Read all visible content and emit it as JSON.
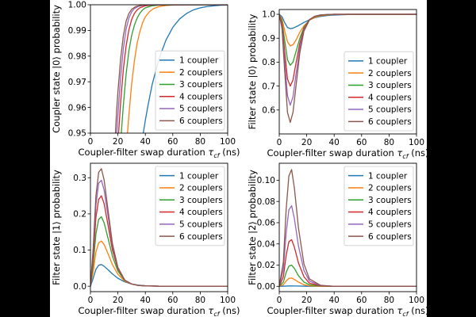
{
  "colors": {
    "series": [
      "#1f77b4",
      "#ff7f0e",
      "#2ca02c",
      "#d62728",
      "#9467bd",
      "#8c564b"
    ]
  },
  "chart_data": [
    {
      "type": "line",
      "panel": "top-left",
      "xlabel": "Coupler-filter swap duration τ_cf (ns)",
      "xlabel_main": "Coupler-filter swap duration ",
      "xlabel_sym": "τ",
      "xlabel_sub": "cf",
      "xlabel_unit": " (ns)",
      "ylabel": "Coupler state |0⟩ probability",
      "xlim": [
        0,
        100
      ],
      "ylim": [
        0.95,
        1.0
      ],
      "xticks": [
        0,
        20,
        40,
        60,
        80,
        100
      ],
      "yticks": [
        0.95,
        0.96,
        0.97,
        0.98,
        0.99,
        1.0
      ],
      "ytick_labels": [
        "0.95",
        "0.96",
        "0.97",
        "0.98",
        "0.99",
        "1.00"
      ],
      "legend_position": "lower-right",
      "series": [
        {
          "name": "1 coupler",
          "x": [
            38.5,
            40,
            42,
            45,
            50,
            55,
            60,
            65,
            70,
            75,
            80,
            85,
            90,
            95,
            100
          ],
          "y": [
            0.95,
            0.955,
            0.961,
            0.969,
            0.979,
            0.9862,
            0.9912,
            0.9945,
            0.9966,
            0.998,
            0.9988,
            0.9993,
            0.9996,
            0.9998,
            0.9999
          ]
        },
        {
          "name": "2 couplers",
          "x": [
            27,
            28,
            30,
            32,
            34,
            36,
            38,
            40,
            43,
            46,
            50,
            55,
            60,
            70,
            80,
            100
          ],
          "y": [
            0.95,
            0.957,
            0.969,
            0.978,
            0.985,
            0.9895,
            0.993,
            0.9953,
            0.9973,
            0.9985,
            0.9993,
            0.9997,
            0.9999,
            1.0,
            1.0,
            1.0
          ]
        },
        {
          "name": "3 couplers",
          "x": [
            22.5,
            24,
            26,
            28,
            30,
            32,
            34,
            36,
            38,
            40,
            45,
            50,
            60,
            100
          ],
          "y": [
            0.95,
            0.961,
            0.973,
            0.982,
            0.988,
            0.992,
            0.9948,
            0.9967,
            0.998,
            0.9988,
            0.9996,
            0.9999,
            1.0,
            1.0
          ]
        },
        {
          "name": "4 couplers",
          "x": [
            20.5,
            22,
            24,
            26,
            28,
            30,
            32,
            34,
            36,
            40,
            45,
            55,
            100
          ],
          "y": [
            0.95,
            0.962,
            0.975,
            0.984,
            0.9902,
            0.9942,
            0.9966,
            0.998,
            0.9988,
            0.9996,
            0.9999,
            1.0,
            1.0
          ]
        },
        {
          "name": "5 couplers",
          "x": [
            19.2,
            20,
            22,
            24,
            26,
            28,
            30,
            32,
            35,
            40,
            50,
            100
          ],
          "y": [
            0.95,
            0.957,
            0.972,
            0.983,
            0.9905,
            0.9948,
            0.9972,
            0.9985,
            0.9994,
            0.9999,
            1.0,
            1.0
          ]
        },
        {
          "name": "6 couplers",
          "x": [
            18.2,
            19,
            20,
            22,
            24,
            26,
            28,
            30,
            33,
            38,
            45,
            100
          ],
          "y": [
            0.95,
            0.958,
            0.966,
            0.979,
            0.988,
            0.9936,
            0.9966,
            0.9982,
            0.9993,
            0.9999,
            1.0,
            1.0
          ]
        }
      ]
    },
    {
      "type": "line",
      "panel": "top-right",
      "xlabel": "Coupler-filter swap duration τ_cf (ns)",
      "xlabel_main": "Coupler-filter swap duration ",
      "xlabel_sym": "τ",
      "xlabel_sub": "cf",
      "xlabel_unit": " (ns)",
      "ylabel": "Filter state |0⟩ probability",
      "xlim": [
        0,
        100
      ],
      "ylim": [
        0.5,
        1.02
      ],
      "xticks": [
        0,
        20,
        40,
        60,
        80,
        100
      ],
      "yticks": [
        0.6,
        0.7,
        0.8,
        0.9,
        1.0
      ],
      "ytick_labels": [
        "0.6",
        "0.7",
        "0.8",
        "0.9",
        "1.0"
      ],
      "legend_position": "lower-right",
      "series": [
        {
          "name": "1 coupler",
          "x": [
            0,
            2,
            4,
            6,
            8,
            10,
            14,
            18,
            22,
            26,
            30,
            35,
            40,
            50,
            60,
            80,
            100
          ],
          "y": [
            1.0,
            0.99,
            0.965,
            0.945,
            0.94,
            0.942,
            0.953,
            0.966,
            0.977,
            0.986,
            0.991,
            0.995,
            0.997,
            0.999,
            1.0,
            1.0,
            1.0
          ]
        },
        {
          "name": "2 couplers",
          "x": [
            0,
            2,
            4,
            6,
            8,
            10,
            12,
            15,
            18,
            22,
            26,
            30,
            35,
            40,
            50,
            60,
            100
          ],
          "y": [
            1.0,
            0.98,
            0.93,
            0.885,
            0.868,
            0.873,
            0.89,
            0.925,
            0.952,
            0.975,
            0.988,
            0.994,
            0.997,
            0.999,
            1.0,
            1.0,
            1.0
          ]
        },
        {
          "name": "3 couplers",
          "x": [
            0,
            2,
            4,
            6,
            8,
            10,
            12,
            15,
            18,
            22,
            26,
            30,
            35,
            40,
            50,
            100
          ],
          "y": [
            1.0,
            0.97,
            0.89,
            0.81,
            0.787,
            0.8,
            0.84,
            0.9,
            0.945,
            0.978,
            0.991,
            0.996,
            0.998,
            0.999,
            1.0,
            1.0
          ]
        },
        {
          "name": "4 couplers",
          "x": [
            0,
            2,
            4,
            6,
            8,
            10,
            12,
            15,
            18,
            22,
            26,
            30,
            35,
            40,
            50,
            100
          ],
          "y": [
            1.0,
            0.96,
            0.84,
            0.73,
            0.7,
            0.725,
            0.79,
            0.88,
            0.94,
            0.978,
            0.992,
            0.997,
            0.999,
            1.0,
            1.0,
            1.0
          ]
        },
        {
          "name": "5 couplers",
          "x": [
            0,
            2,
            4,
            6,
            8,
            10,
            12,
            15,
            18,
            22,
            26,
            30,
            35,
            40,
            50,
            100
          ],
          "y": [
            1.0,
            0.95,
            0.8,
            0.66,
            0.62,
            0.655,
            0.74,
            0.86,
            0.935,
            0.977,
            0.992,
            0.997,
            0.999,
            1.0,
            1.0,
            1.0
          ]
        },
        {
          "name": "6 couplers",
          "x": [
            0,
            2,
            4,
            6,
            8,
            10,
            12,
            15,
            18,
            22,
            26,
            30,
            35,
            40,
            50,
            100
          ],
          "y": [
            1.0,
            0.94,
            0.76,
            0.59,
            0.548,
            0.59,
            0.69,
            0.84,
            0.93,
            0.976,
            0.992,
            0.997,
            0.999,
            1.0,
            1.0,
            1.0
          ]
        }
      ]
    },
    {
      "type": "line",
      "panel": "bottom-left",
      "xlabel": "Coupler-filter swap duration τ_cf (ns)",
      "xlabel_main": "Coupler-filter swap duration ",
      "xlabel_sym": "τ",
      "xlabel_sub": "cf",
      "xlabel_unit": " (ns)",
      "ylabel": "Filter state |1⟩ probability",
      "xlim": [
        0,
        100
      ],
      "ylim": [
        -0.015,
        0.34
      ],
      "xticks": [
        0,
        20,
        40,
        60,
        80,
        100
      ],
      "yticks": [
        0.0,
        0.1,
        0.2,
        0.3
      ],
      "ytick_labels": [
        "0.0",
        "0.1",
        "0.2",
        "0.3"
      ],
      "legend_position": "upper-right",
      "series": [
        {
          "name": "1 coupler",
          "x": [
            0,
            2,
            4,
            6,
            8,
            10,
            13,
            16,
            20,
            25,
            30,
            35,
            40,
            50,
            60,
            80,
            100
          ],
          "y": [
            0,
            0.022,
            0.047,
            0.058,
            0.06,
            0.055,
            0.045,
            0.034,
            0.022,
            0.012,
            0.006,
            0.003,
            0.0015,
            0.0003,
            0,
            0,
            0
          ]
        },
        {
          "name": "2 couplers",
          "x": [
            0,
            2,
            4,
            6,
            8,
            10,
            13,
            16,
            20,
            25,
            30,
            35,
            40,
            50,
            60,
            100
          ],
          "y": [
            0,
            0.04,
            0.095,
            0.12,
            0.125,
            0.115,
            0.088,
            0.06,
            0.033,
            0.014,
            0.006,
            0.0025,
            0.001,
            0,
            0,
            0
          ]
        },
        {
          "name": "3 couplers",
          "x": [
            0,
            2,
            4,
            6,
            8,
            10,
            13,
            16,
            20,
            25,
            30,
            35,
            40,
            50,
            100
          ],
          "y": [
            0,
            0.06,
            0.145,
            0.185,
            0.192,
            0.175,
            0.13,
            0.083,
            0.042,
            0.016,
            0.006,
            0.002,
            0.001,
            0,
            0
          ]
        },
        {
          "name": "4 couplers",
          "x": [
            0,
            2,
            4,
            6,
            8,
            10,
            13,
            16,
            20,
            25,
            30,
            35,
            40,
            50,
            100
          ],
          "y": [
            0,
            0.08,
            0.19,
            0.24,
            0.25,
            0.228,
            0.165,
            0.1,
            0.048,
            0.017,
            0.006,
            0.002,
            0.001,
            0,
            0
          ]
        },
        {
          "name": "5 couplers",
          "x": [
            0,
            2,
            4,
            6,
            8,
            10,
            13,
            16,
            20,
            25,
            30,
            35,
            40,
            50,
            100
          ],
          "y": [
            0,
            0.095,
            0.225,
            0.285,
            0.293,
            0.265,
            0.19,
            0.112,
            0.05,
            0.017,
            0.006,
            0.002,
            0.001,
            0,
            0
          ]
        },
        {
          "name": "6 couplers",
          "x": [
            0,
            2,
            4,
            6,
            8,
            10,
            13,
            16,
            20,
            25,
            30,
            35,
            40,
            50,
            100
          ],
          "y": [
            0,
            0.105,
            0.25,
            0.315,
            0.325,
            0.293,
            0.205,
            0.118,
            0.052,
            0.017,
            0.006,
            0.002,
            0.001,
            0,
            0
          ]
        }
      ]
    },
    {
      "type": "line",
      "panel": "bottom-right",
      "xlabel": "Coupler-filter swap duration τ_cf (ns)",
      "xlabel_main": "Coupler-filter swap duration ",
      "xlabel_sym": "τ",
      "xlabel_sub": "cf",
      "xlabel_unit": " (ns)",
      "ylabel": "Filter state |2⟩ probability",
      "xlim": [
        0,
        100
      ],
      "ylim": [
        -0.005,
        0.116
      ],
      "xticks": [
        0,
        20,
        40,
        60,
        80,
        100
      ],
      "yticks": [
        0.0,
        0.02,
        0.04,
        0.06,
        0.08,
        0.1
      ],
      "ytick_labels": [
        "0.00",
        "0.02",
        "0.04",
        "0.06",
        "0.08",
        "0.10"
      ],
      "legend_position": "upper-right",
      "series": [
        {
          "name": "1 coupler",
          "x": [
            0,
            4,
            8,
            12,
            20,
            40,
            100
          ],
          "y": [
            0,
            0.0002,
            0.0004,
            0.0003,
            0.0001,
            0,
            0
          ]
        },
        {
          "name": "2 couplers",
          "x": [
            0,
            3,
            5,
            7,
            9,
            11,
            14,
            18,
            22,
            30,
            40,
            100
          ],
          "y": [
            0,
            0.0015,
            0.005,
            0.0075,
            0.0078,
            0.0065,
            0.004,
            0.0015,
            0.0005,
            0.0001,
            0,
            0
          ]
        },
        {
          "name": "3 couplers",
          "x": [
            0,
            3,
            5,
            7,
            9,
            11,
            14,
            18,
            22,
            30,
            40,
            100
          ],
          "y": [
            0,
            0.004,
            0.013,
            0.019,
            0.02,
            0.017,
            0.01,
            0.004,
            0.0015,
            0.0003,
            0,
            0
          ]
        },
        {
          "name": "4 couplers",
          "x": [
            0,
            3,
            5,
            7,
            9,
            11,
            14,
            18,
            22,
            30,
            40,
            100
          ],
          "y": [
            0,
            0.009,
            0.029,
            0.042,
            0.044,
            0.037,
            0.022,
            0.009,
            0.003,
            0.0005,
            0,
            0
          ]
        },
        {
          "name": "5 couplers",
          "x": [
            0,
            3,
            5,
            7,
            9,
            11,
            14,
            18,
            22,
            30,
            40,
            100
          ],
          "y": [
            0,
            0.016,
            0.05,
            0.072,
            0.076,
            0.064,
            0.038,
            0.015,
            0.005,
            0.0008,
            0,
            0
          ]
        },
        {
          "name": "6 couplers",
          "x": [
            0,
            3,
            5,
            7,
            9,
            11,
            14,
            18,
            22,
            30,
            40,
            100
          ],
          "y": [
            0,
            0.023,
            0.072,
            0.104,
            0.11,
            0.093,
            0.055,
            0.021,
            0.007,
            0.001,
            0,
            0
          ]
        }
      ]
    }
  ]
}
